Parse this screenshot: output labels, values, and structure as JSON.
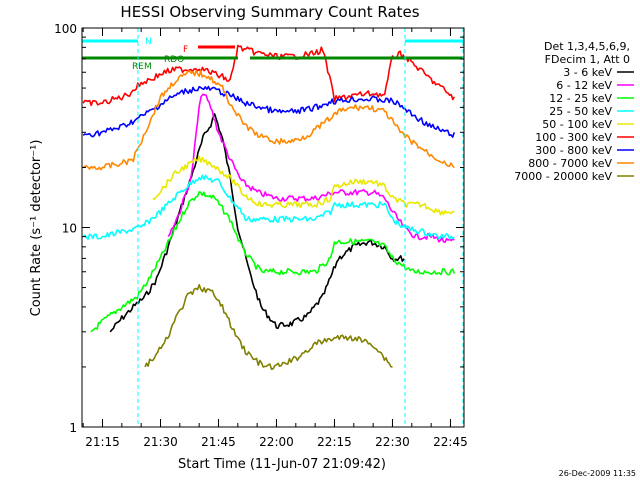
{
  "timestamp": "26-Dec-2009 11:35",
  "chart_data": {
    "type": "line",
    "title": "HESSI Observing Summary Count Rates",
    "xlabel": "Start Time (11-Jun-07 21:09:42)",
    "ylabel": "Count Rate (s⁻¹ detector⁻¹)",
    "yscale": "log",
    "ylim": [
      1,
      100
    ],
    "xlim": [
      "21:09:42",
      "22:48:30"
    ],
    "x_ticks": [
      "21:15",
      "21:30",
      "21:45",
      "22:00",
      "22:15",
      "22:30",
      "22:45"
    ],
    "y_ticks": [
      "1",
      "10",
      "100"
    ],
    "legend": {
      "header": [
        "Det 1,3,4,5,6,9,",
        "FDecim 1, Att 0"
      ],
      "placement": "right"
    },
    "series": [
      {
        "name": "3 - 6 keV",
        "color": "#000000",
        "x": [
          "21:17",
          "21:20",
          "21:23",
          "21:26",
          "21:29",
          "21:32",
          "21:35",
          "21:38",
          "21:41",
          "21:43",
          "21:44",
          "21:46",
          "21:48",
          "21:50",
          "21:53",
          "21:56",
          "22:00",
          "22:04",
          "22:08",
          "22:12",
          "22:16",
          "22:20",
          "22:24",
          "22:28",
          "22:30",
          "22:33"
        ],
        "values": [
          3.0,
          3.5,
          4.0,
          4.5,
          5.5,
          8.0,
          12,
          18,
          28,
          33,
          37,
          28,
          18,
          10,
          6.0,
          4.0,
          3.2,
          3.3,
          3.6,
          4.5,
          7.0,
          8.0,
          8.5,
          8.0,
          7.0,
          7.0
        ]
      },
      {
        "name": "6 - 12 keV",
        "color": "#ff00ff",
        "x": [
          "21:32",
          "21:35",
          "21:38",
          "21:40",
          "21:41",
          "21:43",
          "21:45",
          "21:48",
          "21:51",
          "21:55",
          "22:00",
          "22:05",
          "22:10",
          "22:15",
          "22:20",
          "22:25",
          "22:28",
          "22:30",
          "22:33",
          "22:36",
          "22:40",
          "22:44",
          "22:46"
        ],
        "values": [
          9.0,
          12,
          18,
          40,
          48,
          40,
          30,
          22,
          17,
          15,
          14,
          14,
          14,
          15,
          15,
          15,
          14,
          12,
          10,
          9.0,
          9.0,
          8.5,
          8.5
        ]
      },
      {
        "name": "12 - 25 keV",
        "color": "#00ff00",
        "x": [
          "21:12",
          "21:16",
          "21:20",
          "21:24",
          "21:27",
          "21:30",
          "21:34",
          "21:37",
          "21:40",
          "21:44",
          "21:48",
          "21:51",
          "21:53",
          "21:56",
          "22:00",
          "22:05",
          "22:10",
          "22:14",
          "22:15",
          "22:20",
          "22:25",
          "22:28",
          "22:30",
          "22:35",
          "22:40",
          "22:46"
        ],
        "values": [
          3.0,
          3.5,
          4.0,
          4.5,
          5.5,
          7.0,
          10,
          13,
          15,
          14,
          11,
          8.0,
          7.0,
          6.0,
          6.0,
          6.0,
          6.0,
          7.0,
          8.5,
          8.5,
          8.5,
          8.0,
          7.0,
          6.0,
          6.0,
          6.0
        ]
      },
      {
        "name": "25 - 50 keV",
        "color": "#00ffff",
        "x": [
          "21:10",
          "21:15",
          "21:20",
          "21:25",
          "21:30",
          "21:35",
          "21:40",
          "21:45",
          "21:48",
          "21:51",
          "21:52",
          "21:55",
          "22:00",
          "22:05",
          "22:10",
          "22:14",
          "22:15",
          "22:20",
          "22:25",
          "22:28",
          "22:30",
          "22:33",
          "22:38",
          "22:42",
          "22:46"
        ],
        "values": [
          9.0,
          9.0,
          9.5,
          10,
          12,
          15,
          18,
          17,
          14,
          12,
          11,
          11,
          11,
          11,
          11,
          12,
          13,
          13,
          13,
          13,
          11,
          10,
          9.5,
          9.0,
          9.0
        ]
      },
      {
        "name": "50 - 100 keV",
        "color": "#e8e800",
        "x": [
          "21:28",
          "21:31",
          "21:33",
          "21:36",
          "21:40",
          "21:43",
          "21:46",
          "21:49",
          "21:51",
          "21:53",
          "21:56",
          "22:00",
          "22:05",
          "22:10",
          "22:14",
          "22:15",
          "22:20",
          "22:25",
          "22:28",
          "22:30",
          "22:34",
          "22:38",
          "22:42",
          "22:46"
        ],
        "values": [
          14,
          16,
          18,
          20,
          22,
          21,
          19,
          17,
          15,
          14,
          13,
          13,
          13,
          13,
          14,
          16,
          17,
          17,
          16,
          14,
          13,
          13,
          12,
          12
        ]
      },
      {
        "name": "100 - 300 keV",
        "color": "#ff0000",
        "x": [
          "21:10",
          "21:15",
          "21:18",
          "21:20",
          "21:22",
          "21:25",
          "21:28",
          "21:31",
          "21:34",
          "21:37",
          "21:40",
          "21:43",
          "21:46",
          "21:48",
          "21:50",
          "21:55",
          "22:00",
          "22:05",
          "22:10",
          "22:12",
          "22:15",
          "22:20",
          "22:25",
          "22:28",
          "22:30",
          "22:32",
          "22:34",
          "22:37",
          "22:40",
          "22:44",
          "22:46"
        ],
        "values": [
          42,
          42,
          44,
          45,
          47,
          53,
          56,
          60,
          62,
          62,
          63,
          60,
          57,
          54,
          80,
          75,
          72,
          72,
          75,
          78,
          44,
          46,
          47,
          46,
          72,
          74,
          70,
          62,
          55,
          48,
          44
        ]
      },
      {
        "name": "300 - 800 keV",
        "color": "#0000ff",
        "x": [
          "21:10",
          "21:15",
          "21:20",
          "21:24",
          "21:28",
          "21:32",
          "21:36",
          "21:40",
          "21:44",
          "21:48",
          "21:52",
          "21:56",
          "22:00",
          "22:04",
          "22:08",
          "22:12",
          "22:14",
          "22:16",
          "22:20",
          "22:25",
          "22:30",
          "22:32",
          "22:35",
          "22:40",
          "22:46"
        ],
        "values": [
          29,
          30,
          32,
          35,
          39,
          44,
          48,
          50,
          49,
          46,
          42,
          40,
          38,
          38,
          39,
          41,
          43,
          43,
          44,
          44,
          43,
          41,
          37,
          32,
          29
        ]
      },
      {
        "name": "800 - 7000 keV",
        "color": "#ff8800",
        "x": [
          "21:10",
          "21:15",
          "21:20",
          "21:23",
          "21:26",
          "21:30",
          "21:34",
          "21:38",
          "21:42",
          "21:46",
          "21:48",
          "21:51",
          "21:54",
          "21:57",
          "22:00",
          "22:04",
          "22:08",
          "22:12",
          "22:16",
          "22:20",
          "22:24",
          "22:28",
          "22:30",
          "22:32",
          "22:35",
          "22:40",
          "22:46"
        ],
        "values": [
          20,
          20,
          21,
          22,
          30,
          45,
          55,
          60,
          58,
          50,
          42,
          34,
          30,
          28,
          27,
          27,
          29,
          33,
          38,
          40,
          40,
          38,
          34,
          30,
          27,
          23,
          20
        ]
      },
      {
        "name": "7000 - 20000 keV",
        "color": "#808000",
        "x": [
          "21:26",
          "21:28",
          "21:31",
          "21:34",
          "21:37",
          "21:40",
          "21:43",
          "21:46",
          "21:49",
          "21:52",
          "21:54",
          "21:57",
          "22:00",
          "22:05",
          "22:10",
          "22:15",
          "22:20",
          "22:25",
          "22:30"
        ],
        "values": [
          2.0,
          2.2,
          2.6,
          3.5,
          4.5,
          5.0,
          4.8,
          4.0,
          3.0,
          2.4,
          2.2,
          2.0,
          2.0,
          2.2,
          2.6,
          2.8,
          2.8,
          2.6,
          2.0
        ]
      }
    ],
    "annotations": [
      {
        "text": "N",
        "color": "#00ffff"
      },
      {
        "text": "F",
        "color": "#ff0000"
      },
      {
        "text": "RDO",
        "color": "#008800"
      },
      {
        "text": "REM",
        "color": "#008800"
      }
    ]
  }
}
